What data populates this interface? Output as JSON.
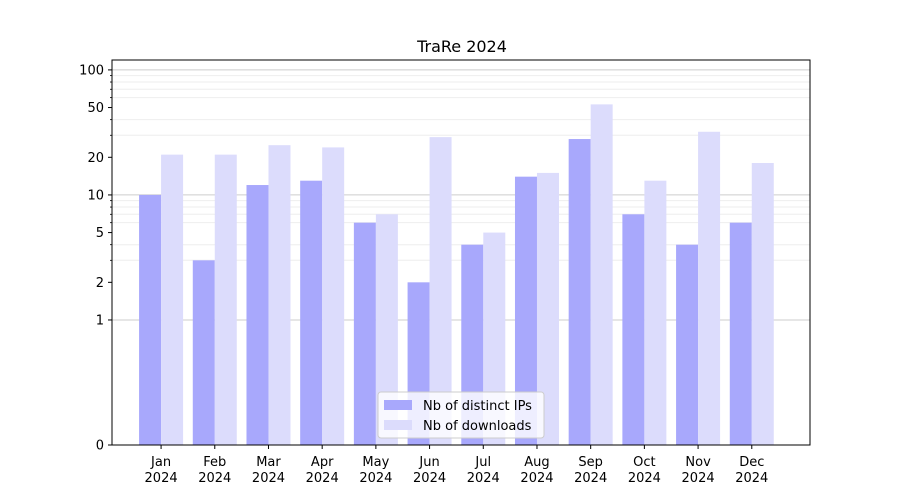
{
  "chart_data": {
    "type": "bar",
    "title": "TraRe 2024",
    "xlabel": "",
    "ylabel": "",
    "yscale": "symlog",
    "ylim": [
      0,
      120
    ],
    "yticks": [
      0,
      1,
      2,
      5,
      10,
      20,
      50,
      100
    ],
    "grid": true,
    "legend_position": "bottom-center",
    "categories": [
      "Jan\n2024",
      "Feb\n2024",
      "Mar\n2024",
      "Apr\n2024",
      "May\n2024",
      "Jun\n2024",
      "Jul\n2024",
      "Aug\n2024",
      "Sep\n2024",
      "Oct\n2024",
      "Nov\n2024",
      "Dec\n2024"
    ],
    "series": [
      {
        "name": "Nb of distinct IPs",
        "color": "#a8a8fc",
        "values": [
          10,
          3,
          12,
          13,
          6,
          2,
          4,
          14,
          28,
          7,
          4,
          6
        ]
      },
      {
        "name": "Nb of downloads",
        "color": "#dcdcfc",
        "values": [
          21,
          21,
          25,
          24,
          7,
          29,
          5,
          15,
          53,
          13,
          32,
          18
        ]
      }
    ]
  }
}
